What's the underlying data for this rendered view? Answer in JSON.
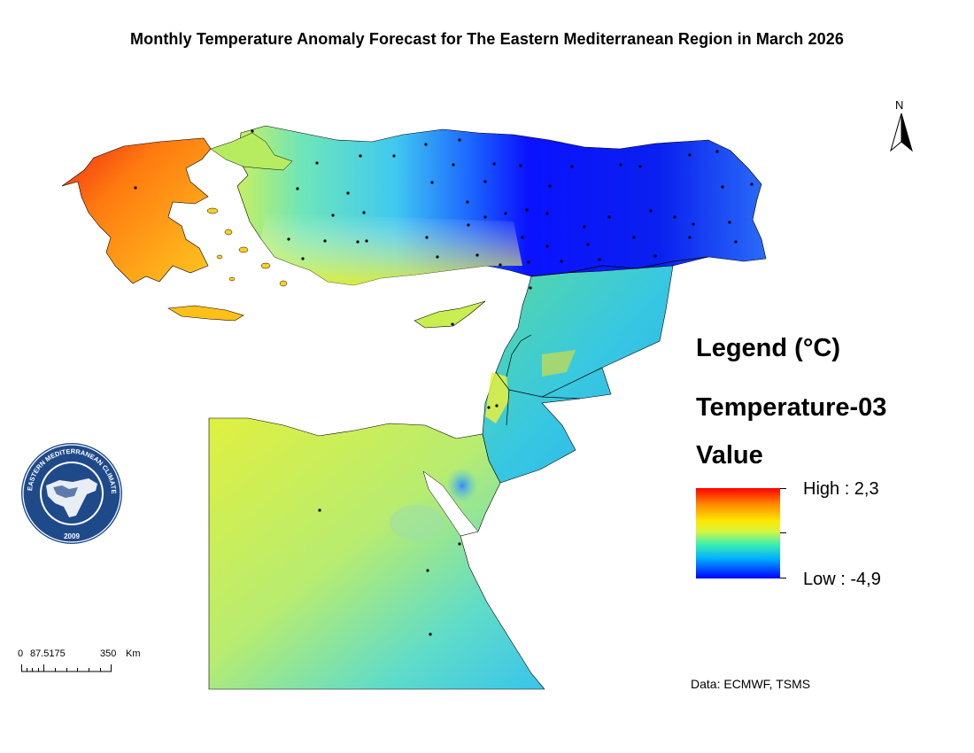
{
  "title": "Monthly Temperature Anomaly Forecast for The Eastern Mediterranean Region in March 2026",
  "legend": {
    "title": "Legend (°C)",
    "layer": "Temperature-03",
    "field": "Value",
    "high_label": "High : 2,3",
    "low_label": "Low : -4,9",
    "high_value": 2.3,
    "low_value": -4.9,
    "ramp_colors": [
      "#ff0000",
      "#ff8a00",
      "#ffe600",
      "#d6f540",
      "#3df0ad",
      "#00b0ff",
      "#0000ff"
    ]
  },
  "scale_bar": {
    "label_zero": "0",
    "label_mid": "87.5175",
    "label_end": "350",
    "unit": "Km"
  },
  "north_arrow": {
    "label": "N",
    "icon": "north-arrow-icon"
  },
  "source": "Data: ECMWF, TSMS",
  "logo": {
    "text": "EASTERN MEDITERRANEAN CLIMATE CENTRE",
    "year": "2009",
    "icon": "emcc-logo"
  },
  "colors": {
    "greece": "#ff9a10",
    "turkey_west": "#7fe6a8",
    "turkey_east": "#0a12ff",
    "levant": "#3ad4d0",
    "egypt": "#d4f04c"
  }
}
